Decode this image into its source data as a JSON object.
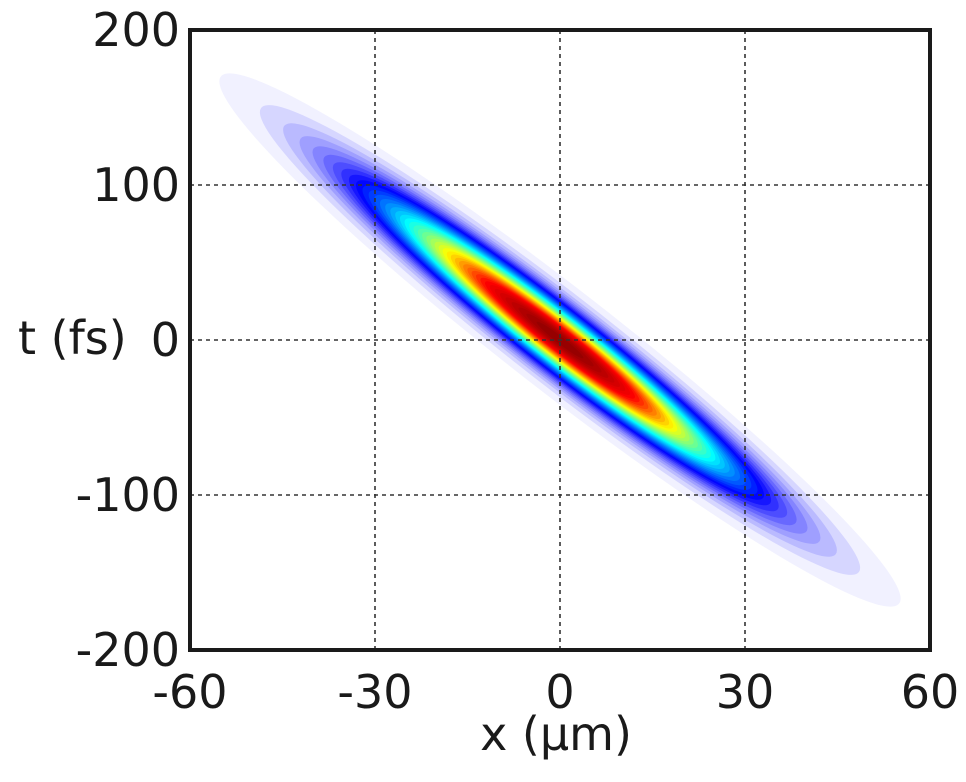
{
  "chart_data": {
    "type": "heatmap",
    "title": "",
    "xlabel": "x (µm)",
    "ylabel": "t (fs)",
    "xlim": [
      -60,
      60
    ],
    "ylim": [
      -200,
      200
    ],
    "x_ticks": [
      "-60",
      "-30",
      "0",
      "30",
      "60"
    ],
    "y_ticks": [
      "200",
      "100",
      "0",
      "-100",
      "-200"
    ],
    "x_tick_values": [
      -60,
      -30,
      0,
      30,
      60
    ],
    "y_tick_values": [
      200,
      100,
      0,
      -100,
      -200
    ],
    "grid": true,
    "colormap": [
      "#ffffff",
      "#0000ff",
      "#00ffff",
      "#ffff00",
      "#ff0000",
      "#8b0000"
    ],
    "intensity_distribution": {
      "shape": "tilted gaussian ellipse",
      "center": {
        "x": 0,
        "t": 0
      },
      "major_axis_direction": {
        "dx": 1,
        "dt": -3.2
      },
      "extent_along_major": {
        "x_range": [
          -55,
          55
        ],
        "t_range": [
          170,
          -170
        ]
      },
      "peak_intensity": 1.0
    }
  }
}
